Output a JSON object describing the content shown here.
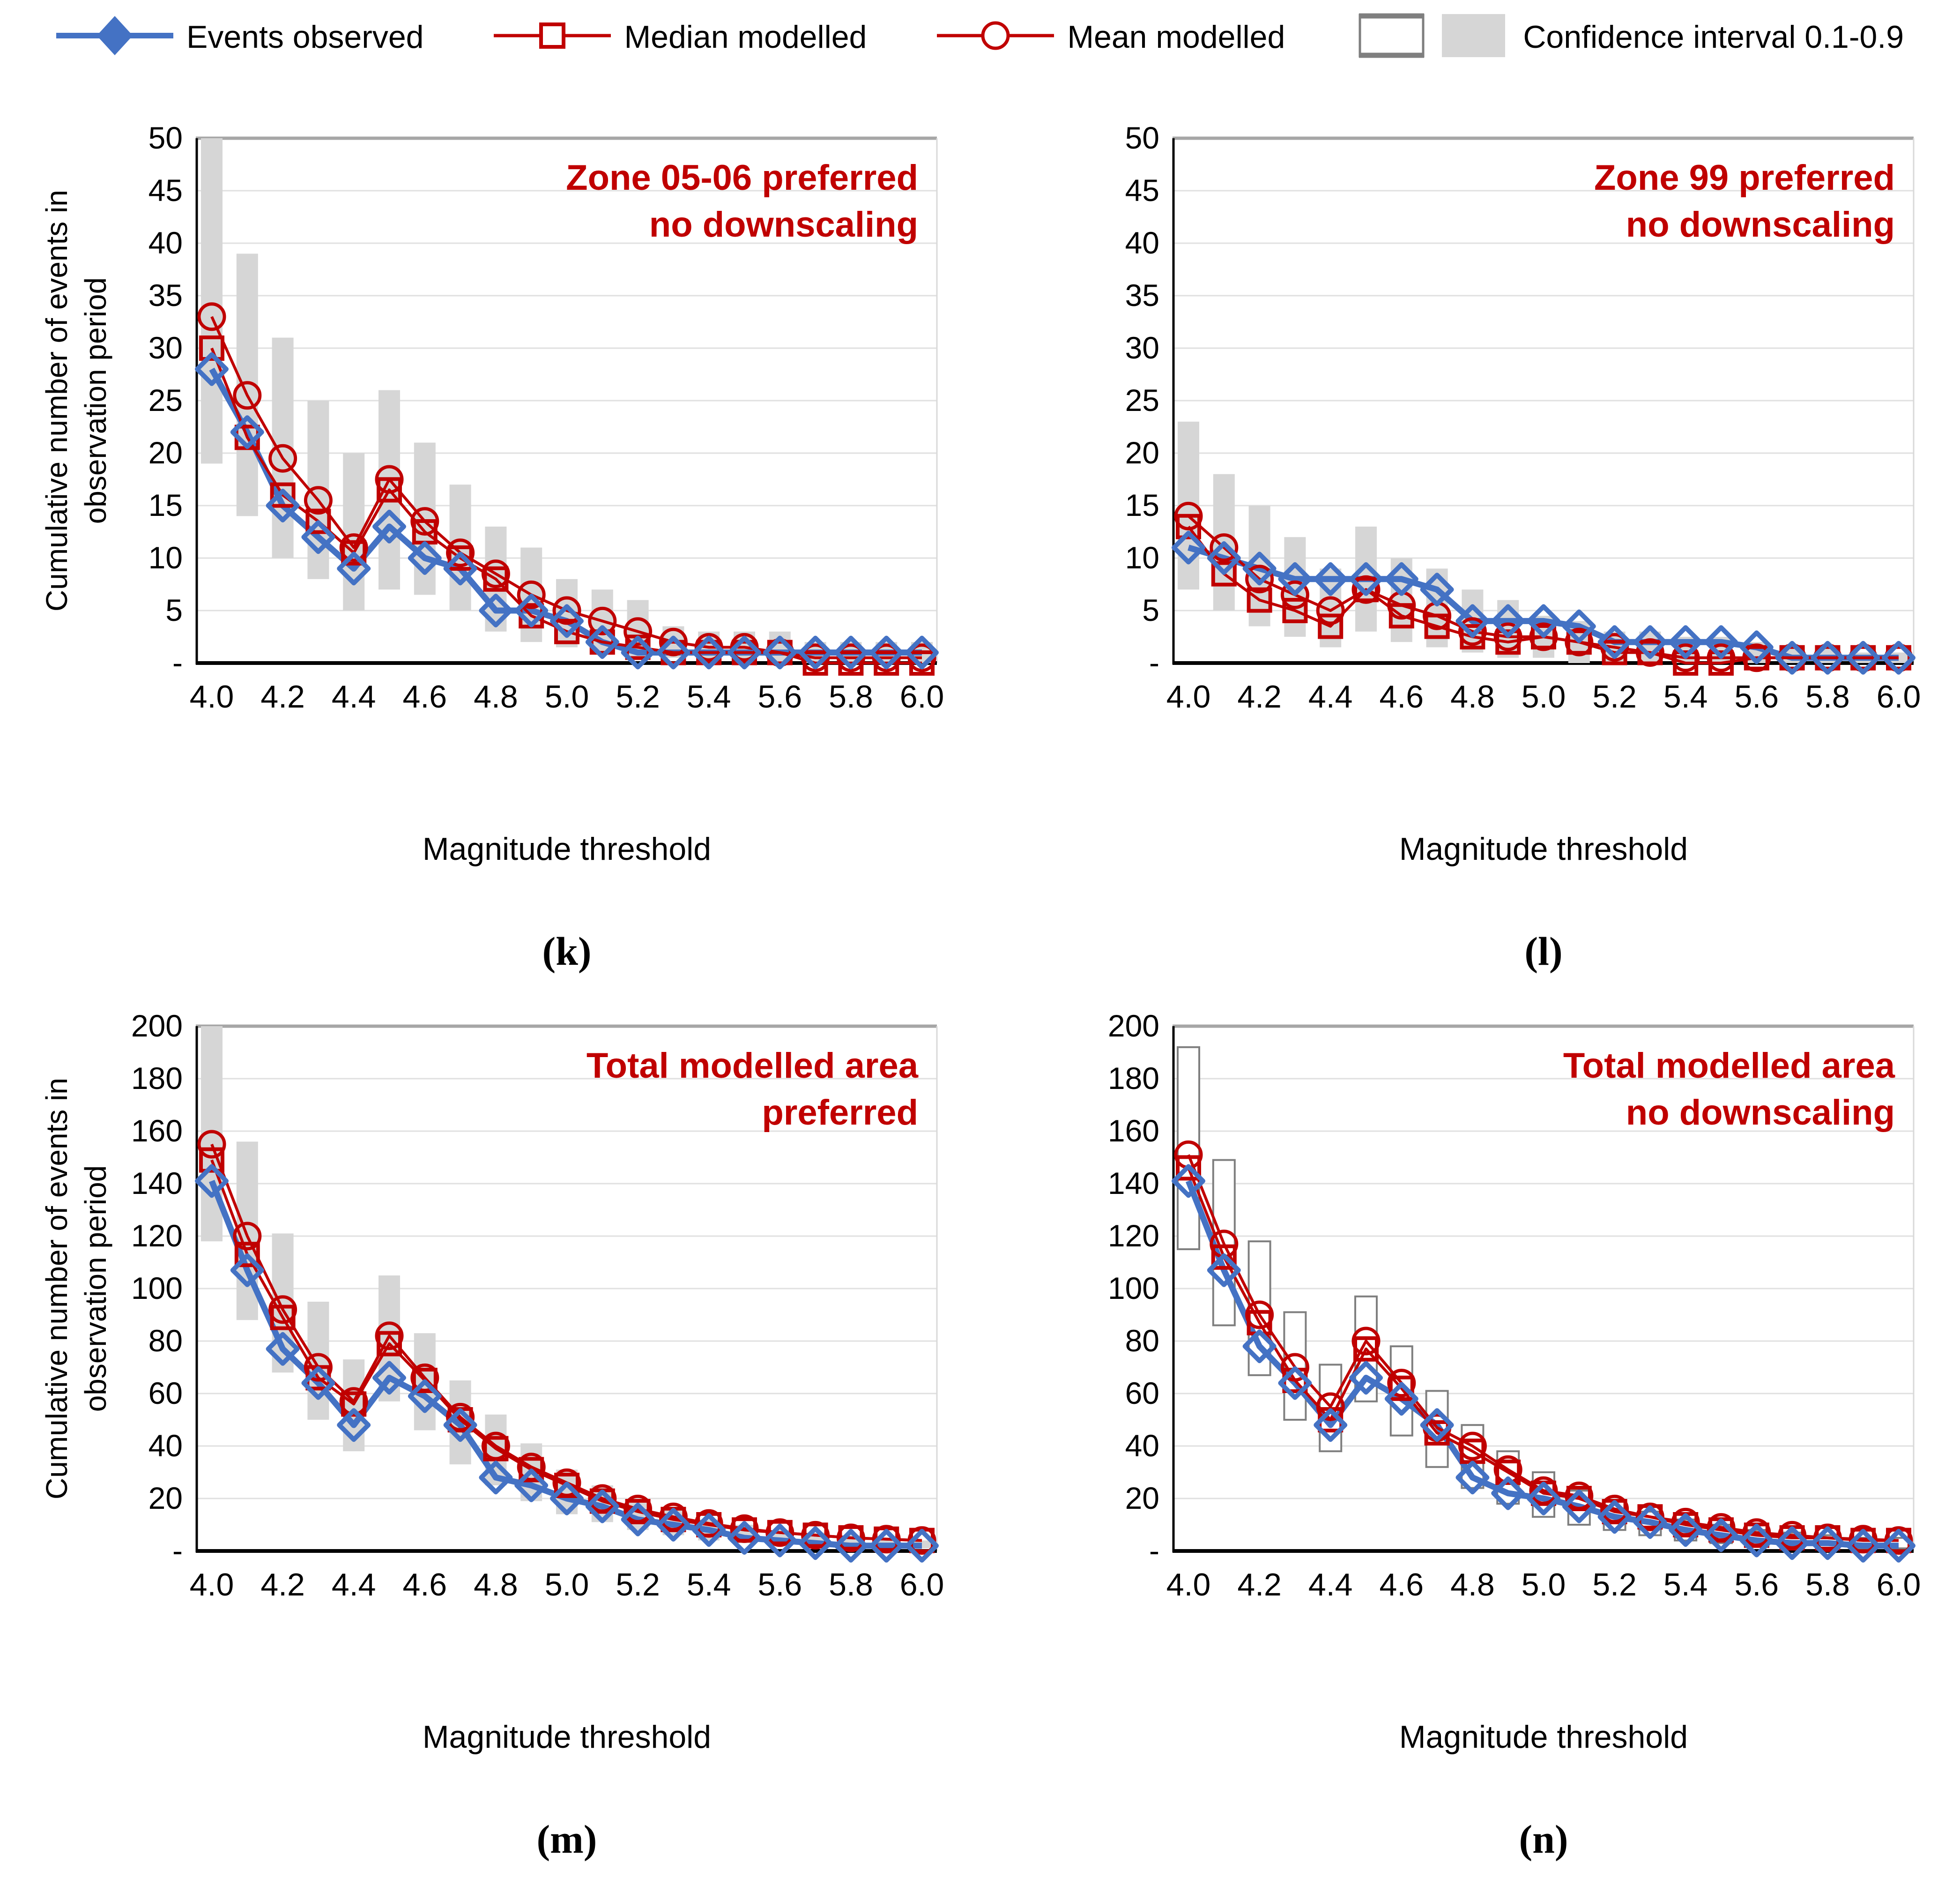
{
  "legend": {
    "items": [
      {
        "label": "Events observed",
        "marker": "diamond"
      },
      {
        "label": "Median modelled",
        "marker": "square"
      },
      {
        "label": "Mean modelled",
        "marker": "circle"
      },
      {
        "label": "Confidence interval 0.1-0.9",
        "marker": "ci"
      }
    ]
  },
  "colors": {
    "observed": "#4472C4",
    "modelled": "#C00000",
    "ci_fill": "#D6D6D6",
    "ci_stroke": "#7F7F7F",
    "grid": "#E0E0E0",
    "border_top": "#A6A6A6",
    "border_right": "#D9D9D9",
    "axis": "#000000",
    "title": "#C00000"
  },
  "axes": {
    "x_label": "Magnitude threshold",
    "y_label": "Cumulative number of events in observation period",
    "x_ticks": [
      "4.0",
      "4.2",
      "4.4",
      "4.6",
      "4.8",
      "5.0",
      "5.2",
      "5.4",
      "5.6",
      "5.8",
      "6.0"
    ],
    "x_tick_values": [
      4.0,
      4.2,
      4.4,
      4.6,
      4.8,
      5.0,
      5.2,
      5.4,
      5.6,
      5.8,
      6.0
    ],
    "x_values": [
      4.0,
      4.1,
      4.2,
      4.3,
      4.4,
      4.5,
      4.6,
      4.7,
      4.8,
      4.9,
      5.0,
      5.1,
      5.2,
      5.3,
      5.4,
      5.5,
      5.6,
      5.7,
      5.8,
      5.9,
      6.0
    ]
  },
  "chart_data": [
    {
      "id": "k",
      "caption": "(k)",
      "type": "line",
      "title_lines": [
        "Zone 05-06 preferred",
        "no downscaling"
      ],
      "ylim": [
        0,
        50
      ],
      "y_ticks": [
        "50",
        "45",
        "40",
        "35",
        "30",
        "25",
        "20",
        "15",
        "10",
        "5",
        "-"
      ],
      "ci_style": "filled",
      "series": {
        "observed": [
          28,
          22,
          15,
          12,
          9,
          13,
          10,
          9,
          5,
          5,
          4,
          2,
          1,
          1,
          1,
          1,
          1,
          1,
          1,
          1,
          1
        ],
        "median": [
          30,
          21.5,
          16,
          13.5,
          10.5,
          16.5,
          12.5,
          10,
          8,
          4.5,
          3,
          2,
          1.5,
          1,
          1,
          1,
          1,
          0,
          0,
          0,
          0
        ],
        "mean": [
          33,
          25.5,
          19.5,
          15.5,
          11,
          17.5,
          13.5,
          10.5,
          8.5,
          6.5,
          5,
          4,
          3,
          2,
          1.5,
          1.5,
          1,
          0.5,
          0.5,
          0.5,
          0.5
        ],
        "ci_low": [
          19,
          14,
          10,
          8,
          5,
          7,
          6.5,
          5,
          3,
          2,
          1.5,
          1,
          0.5,
          0.5,
          0,
          0,
          0,
          0,
          0,
          0,
          0
        ],
        "ci_high": [
          50,
          39,
          31,
          25,
          20,
          26,
          21,
          17,
          13,
          11,
          8,
          7,
          6,
          3.5,
          3,
          3,
          3,
          2,
          2,
          2,
          2
        ]
      }
    },
    {
      "id": "l",
      "caption": "(l)",
      "type": "line",
      "title_lines": [
        "Zone 99 preferred",
        "no downscaling"
      ],
      "ylim": [
        0,
        50
      ],
      "y_ticks": [
        "50",
        "45",
        "40",
        "35",
        "30",
        "25",
        "20",
        "15",
        "10",
        "5",
        "-"
      ],
      "ci_style": "filled",
      "series": {
        "observed": [
          11,
          10,
          9,
          8,
          8,
          8,
          8,
          7,
          4,
          4,
          4,
          3.5,
          2,
          2,
          2,
          2,
          1.5,
          0.5,
          0.5,
          0.5,
          0.5
        ],
        "median": [
          13,
          8.5,
          6,
          5,
          3.5,
          7,
          4.5,
          3.5,
          2.5,
          2,
          2.5,
          2,
          1,
          1,
          0,
          0,
          0.5,
          0.5,
          0.5,
          0.5,
          0.5
        ],
        "mean": [
          14,
          11,
          8,
          6.5,
          5,
          7,
          5.5,
          4.5,
          3,
          2.5,
          2.5,
          2,
          1.5,
          1,
          0.5,
          0.5,
          0.5,
          0.5,
          0.5,
          0.5,
          0.5
        ],
        "ci_low": [
          7,
          5,
          3.5,
          2.5,
          1.5,
          3,
          2,
          1.5,
          1,
          0.5,
          0.5,
          0,
          0,
          0,
          0,
          0,
          0,
          0,
          0,
          0,
          0
        ],
        "ci_high": [
          23,
          18,
          15,
          12,
          9,
          13,
          10,
          9,
          7,
          6,
          4.5,
          4,
          3,
          3,
          2.5,
          2.5,
          2,
          1.5,
          1.5,
          1,
          1
        ]
      }
    },
    {
      "id": "m",
      "caption": "(m)",
      "type": "line",
      "title_lines": [
        "Total modelled area",
        "preferred"
      ],
      "ylim": [
        0,
        200
      ],
      "y_ticks": [
        "200",
        "180",
        "160",
        "140",
        "120",
        "100",
        "80",
        "60",
        "40",
        "20",
        "-"
      ],
      "ci_style": "filled",
      "series": {
        "observed": [
          141,
          107,
          77,
          64,
          48,
          66,
          59,
          48,
          28,
          25,
          20,
          17,
          12,
          10,
          8,
          5,
          4,
          3,
          2,
          2,
          2
        ],
        "median": [
          149,
          113,
          89,
          66,
          56,
          79,
          65,
          50,
          39,
          31,
          25,
          19,
          15,
          12,
          10,
          8,
          7,
          6,
          5,
          4.5,
          4
        ],
        "mean": [
          155,
          120,
          92,
          70,
          57,
          82,
          66,
          51,
          40,
          32,
          26,
          20,
          16,
          13,
          10.5,
          8.5,
          7,
          6,
          5,
          4.5,
          4
        ],
        "ci_low": [
          118,
          88,
          68,
          50,
          38,
          57,
          46,
          33,
          25,
          19,
          14,
          11,
          8,
          6,
          4,
          3,
          2,
          2,
          1,
          1,
          1
        ],
        "ci_high": [
          200,
          156,
          121,
          95,
          73,
          105,
          83,
          65,
          52,
          41,
          31,
          25,
          19,
          16,
          12,
          10,
          8,
          7,
          6,
          5,
          4
        ]
      }
    },
    {
      "id": "n",
      "caption": "(n)",
      "type": "line",
      "title_lines": [
        "Total modelled area",
        "no downscaling"
      ],
      "ylim": [
        0,
        200
      ],
      "y_ticks": [
        "200",
        "180",
        "160",
        "140",
        "120",
        "100",
        "80",
        "60",
        "40",
        "20",
        "-"
      ],
      "ci_style": "outlined",
      "series": {
        "observed": [
          141,
          107,
          78,
          64,
          48,
          66,
          58,
          48,
          28,
          22,
          20,
          17,
          13,
          11,
          8,
          6,
          4,
          3,
          3,
          2,
          2
        ],
        "median": [
          146,
          112,
          87,
          65,
          50,
          77,
          62,
          45,
          38,
          30,
          22,
          20,
          15,
          13,
          10,
          8,
          6,
          5,
          5,
          4,
          4
        ],
        "mean": [
          151,
          117,
          90,
          70,
          55,
          80,
          64,
          47,
          40,
          31,
          23,
          21,
          16,
          13,
          11,
          9,
          7,
          6,
          5,
          4.5,
          4
        ],
        "ci_low": [
          115,
          86,
          67,
          50,
          38,
          57,
          44,
          32,
          24,
          18,
          13,
          10,
          8,
          6,
          4,
          3,
          2,
          2,
          1,
          1,
          1
        ],
        "ci_high": [
          192,
          149,
          118,
          91,
          71,
          97,
          78,
          61,
          48,
          38,
          30,
          23,
          19,
          15,
          12,
          10,
          8,
          7,
          6,
          5,
          5
        ]
      }
    }
  ]
}
